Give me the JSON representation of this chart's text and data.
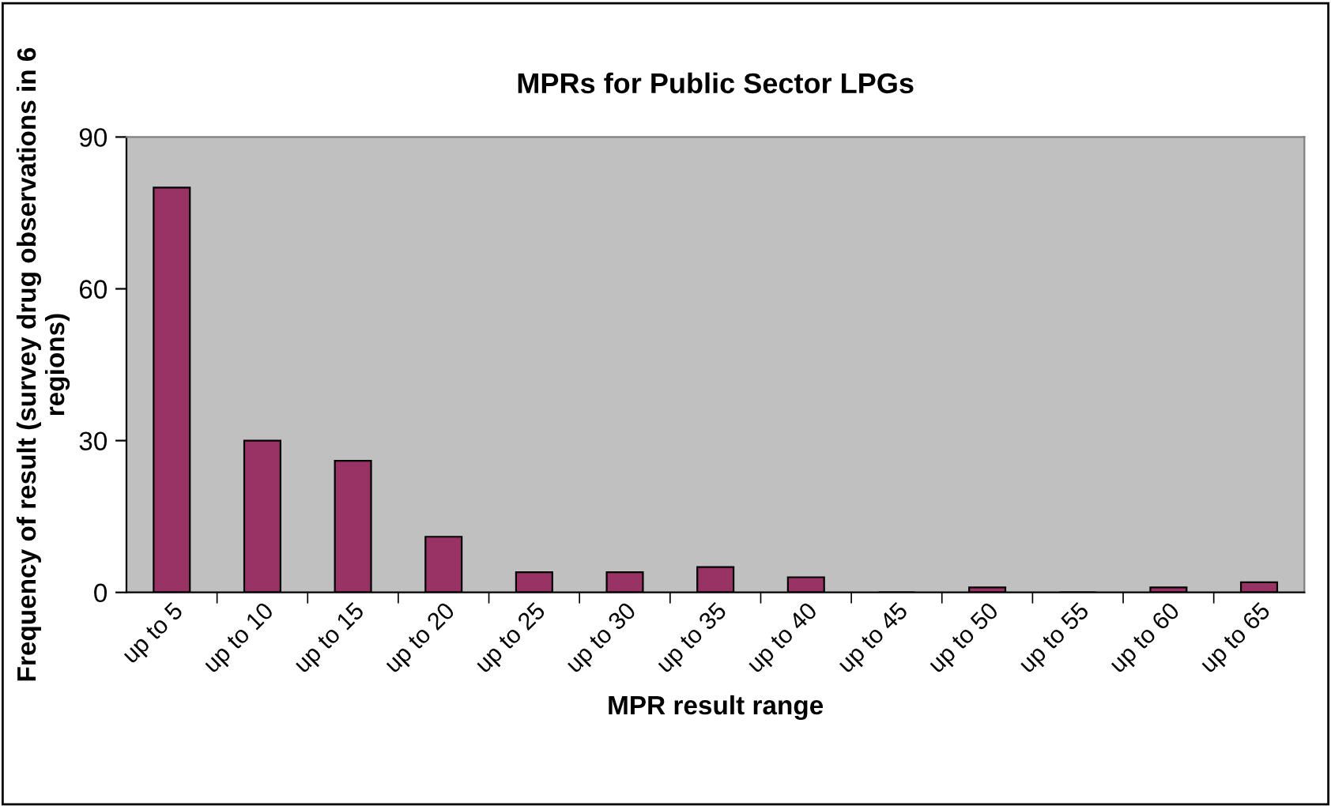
{
  "chart_data": {
    "type": "bar",
    "title": "MPRs for Public Sector LPGs",
    "xlabel": "MPR result range",
    "ylabel": "Frequency of result (survey drug observations in 6 regions)",
    "categories": [
      "up to 5",
      "up to 10",
      "up to 15",
      "up to 20",
      "up to 25",
      "up to 30",
      "up to 35",
      "up to 40",
      "up to 45",
      "up to 50",
      "up to 55",
      "up to 60",
      "up to 65"
    ],
    "values": [
      80,
      30,
      26,
      11,
      4,
      4,
      5,
      3,
      0,
      1,
      0,
      1,
      2
    ],
    "color": "#993366",
    "ylim": [
      0,
      90
    ],
    "yticks": [
      0,
      30,
      60,
      90
    ],
    "grid": false,
    "legend": false
  }
}
